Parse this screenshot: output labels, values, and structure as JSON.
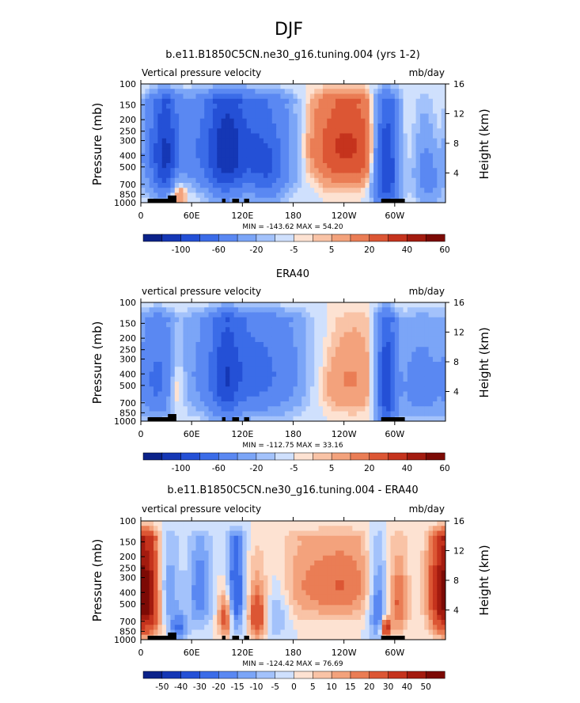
{
  "figure_title": "DJF",
  "colors": {
    "neg": [
      "#0b2289",
      "#1537b5",
      "#2450d6",
      "#3b6ce8",
      "#5a88f2",
      "#7ba5f7",
      "#a3c2fb",
      "#cfe0fd"
    ],
    "pos": [
      "#fde2d2",
      "#f9c3a6",
      "#f3a27c",
      "#ea7d55",
      "#dc5634",
      "#c5331d",
      "#a31b0f",
      "#7c0a05"
    ],
    "land": "#000000"
  },
  "chart_data": [
    {
      "type": "heatmap",
      "title": "b.e11.B1850C5CN.ne30_g16.tuning.004 (yrs 1-2)",
      "left_label": "Vertical pressure velocity",
      "units": "mb/day",
      "ylabel": "Pressure (mb)",
      "ylabel_right": "Height (km)",
      "x_ticks": [
        "0",
        "60E",
        "120E",
        "180",
        "120W",
        "60W"
      ],
      "x_tick_lon": [
        0,
        60,
        120,
        180,
        240,
        300
      ],
      "xlim": [
        0,
        360
      ],
      "y_ticks": [
        "100",
        "150",
        "200",
        "250",
        "300",
        "400",
        "500",
        "700",
        "850",
        "1000"
      ],
      "y_tick_p": [
        100,
        150,
        200,
        250,
        300,
        400,
        500,
        700,
        850,
        1000
      ],
      "ylim": [
        1000,
        100
      ],
      "y_right_ticks": [
        "4",
        "8",
        "12",
        "16"
      ],
      "y_right_km": [
        4,
        8,
        12,
        16
      ],
      "min_max": "MIN = -143.62   MAX =  54.20",
      "colorbar_labels": [
        "-100",
        "-60",
        "-20",
        "-5",
        "5",
        "20",
        "40",
        "60"
      ],
      "features": [
        {
          "lon": 120,
          "p": 350,
          "val": -60,
          "wlon": 55,
          "wp": 520
        },
        {
          "lon": 100,
          "p": 450,
          "val": -45,
          "wlon": 14,
          "wp": 700
        },
        {
          "lon": 30,
          "p": 450,
          "val": -60,
          "wlon": 10,
          "wp": 650
        },
        {
          "lon": 12,
          "p": 350,
          "val": -30,
          "wlon": 14,
          "wp": 500
        },
        {
          "lon": 290,
          "p": 500,
          "val": -90,
          "wlon": 10,
          "wp": 800
        },
        {
          "lon": 340,
          "p": 550,
          "val": -30,
          "wlon": 12,
          "wp": 600
        },
        {
          "lon": 210,
          "p": 350,
          "val": 25,
          "wlon": 40,
          "wp": 450
        },
        {
          "lon": 250,
          "p": 350,
          "val": 20,
          "wlon": 30,
          "wp": 450
        },
        {
          "lon": 355,
          "p": 300,
          "val": 20,
          "wlon": 12,
          "wp": 500
        },
        {
          "lon": 42,
          "p": 800,
          "val": 25,
          "wlon": 8,
          "wp": 350
        },
        {
          "lon": 150,
          "p": 600,
          "val": -30,
          "wlon": 15,
          "wp": 500
        }
      ]
    },
    {
      "type": "heatmap",
      "title": "ERA40",
      "left_label": "vertical pressure velocity",
      "units": "mb/day",
      "ylabel": "Pressure (mb)",
      "ylabel_right": "Height (km)",
      "x_ticks": [
        "0",
        "60E",
        "120E",
        "180",
        "120W",
        "60W"
      ],
      "x_tick_lon": [
        0,
        60,
        120,
        180,
        240,
        300
      ],
      "xlim": [
        0,
        360
      ],
      "y_ticks": [
        "100",
        "150",
        "200",
        "250",
        "300",
        "400",
        "500",
        "700",
        "850",
        "1000"
      ],
      "y_tick_p": [
        100,
        150,
        200,
        250,
        300,
        400,
        500,
        700,
        850,
        1000
      ],
      "ylim": [
        1000,
        100
      ],
      "y_right_ticks": [
        "4",
        "8",
        "12",
        "16"
      ],
      "y_right_km": [
        4,
        8,
        12,
        16
      ],
      "min_max": "MIN = -112.75   MAX =  33.16",
      "colorbar_labels": [
        "-100",
        "-60",
        "-20",
        "-5",
        "5",
        "20",
        "40",
        "60"
      ],
      "features": [
        {
          "lon": 130,
          "p": 400,
          "val": -50,
          "wlon": 50,
          "wp": 600
        },
        {
          "lon": 100,
          "p": 450,
          "val": -40,
          "wlon": 12,
          "wp": 700
        },
        {
          "lon": 20,
          "p": 450,
          "val": -40,
          "wlon": 14,
          "wp": 600
        },
        {
          "lon": 290,
          "p": 500,
          "val": -80,
          "wlon": 8,
          "wp": 800
        },
        {
          "lon": 330,
          "p": 500,
          "val": -30,
          "wlon": 20,
          "wp": 600
        },
        {
          "lon": 42,
          "p": 500,
          "val": 22,
          "wlon": 8,
          "wp": 400
        },
        {
          "lon": 230,
          "p": 450,
          "val": 15,
          "wlon": 40,
          "wp": 500
        }
      ]
    },
    {
      "type": "heatmap",
      "title": "b.e11.B1850C5CN.ne30_g16.tuning.004 - ERA40",
      "left_label": "vertical pressure velocity",
      "units": "mb/day",
      "ylabel": "Pressure (mb)",
      "ylabel_right": "Height (km)",
      "x_ticks": [
        "0",
        "60E",
        "120E",
        "180",
        "120W",
        "60W"
      ],
      "x_tick_lon": [
        0,
        60,
        120,
        180,
        240,
        300
      ],
      "xlim": [
        0,
        360
      ],
      "y_ticks": [
        "100",
        "150",
        "200",
        "250",
        "300",
        "400",
        "500",
        "700",
        "850",
        "1000"
      ],
      "y_tick_p": [
        100,
        150,
        200,
        250,
        300,
        400,
        500,
        700,
        850,
        1000
      ],
      "ylim": [
        1000,
        100
      ],
      "y_right_ticks": [
        "4",
        "8",
        "12",
        "16"
      ],
      "y_right_km": [
        4,
        8,
        12,
        16
      ],
      "min_max": "MIN = -124.42   MAX =  76.69",
      "colorbar_labels": [
        "-50",
        "-40",
        "-30",
        "-20",
        "-15",
        "-10",
        "-5",
        "0",
        "5",
        "10",
        "15",
        "20",
        "30",
        "40",
        "50"
      ],
      "features": [
        {
          "lon": 10,
          "p": 450,
          "val": 40,
          "wlon": 12,
          "wp": 600
        },
        {
          "lon": 355,
          "p": 400,
          "val": 35,
          "wlon": 12,
          "wp": 600
        },
        {
          "lon": 30,
          "p": 400,
          "val": -20,
          "wlon": 10,
          "wp": 500
        },
        {
          "lon": 45,
          "p": 800,
          "val": -20,
          "wlon": 8,
          "wp": 300
        },
        {
          "lon": 70,
          "p": 400,
          "val": -20,
          "wlon": 10,
          "wp": 500
        },
        {
          "lon": 112,
          "p": 400,
          "val": -30,
          "wlon": 8,
          "wp": 600
        },
        {
          "lon": 100,
          "p": 650,
          "val": 30,
          "wlon": 6,
          "wp": 400
        },
        {
          "lon": 138,
          "p": 650,
          "val": 30,
          "wlon": 8,
          "wp": 450
        },
        {
          "lon": 200,
          "p": 350,
          "val": 15,
          "wlon": 40,
          "wp": 450
        },
        {
          "lon": 250,
          "p": 350,
          "val": 12,
          "wlon": 25,
          "wp": 400
        },
        {
          "lon": 280,
          "p": 500,
          "val": -25,
          "wlon": 8,
          "wp": 600
        },
        {
          "lon": 290,
          "p": 800,
          "val": 45,
          "wlon": 4,
          "wp": 200
        },
        {
          "lon": 305,
          "p": 500,
          "val": 20,
          "wlon": 8,
          "wp": 500
        },
        {
          "lon": 160,
          "p": 550,
          "val": -15,
          "wlon": 12,
          "wp": 500
        }
      ]
    }
  ]
}
